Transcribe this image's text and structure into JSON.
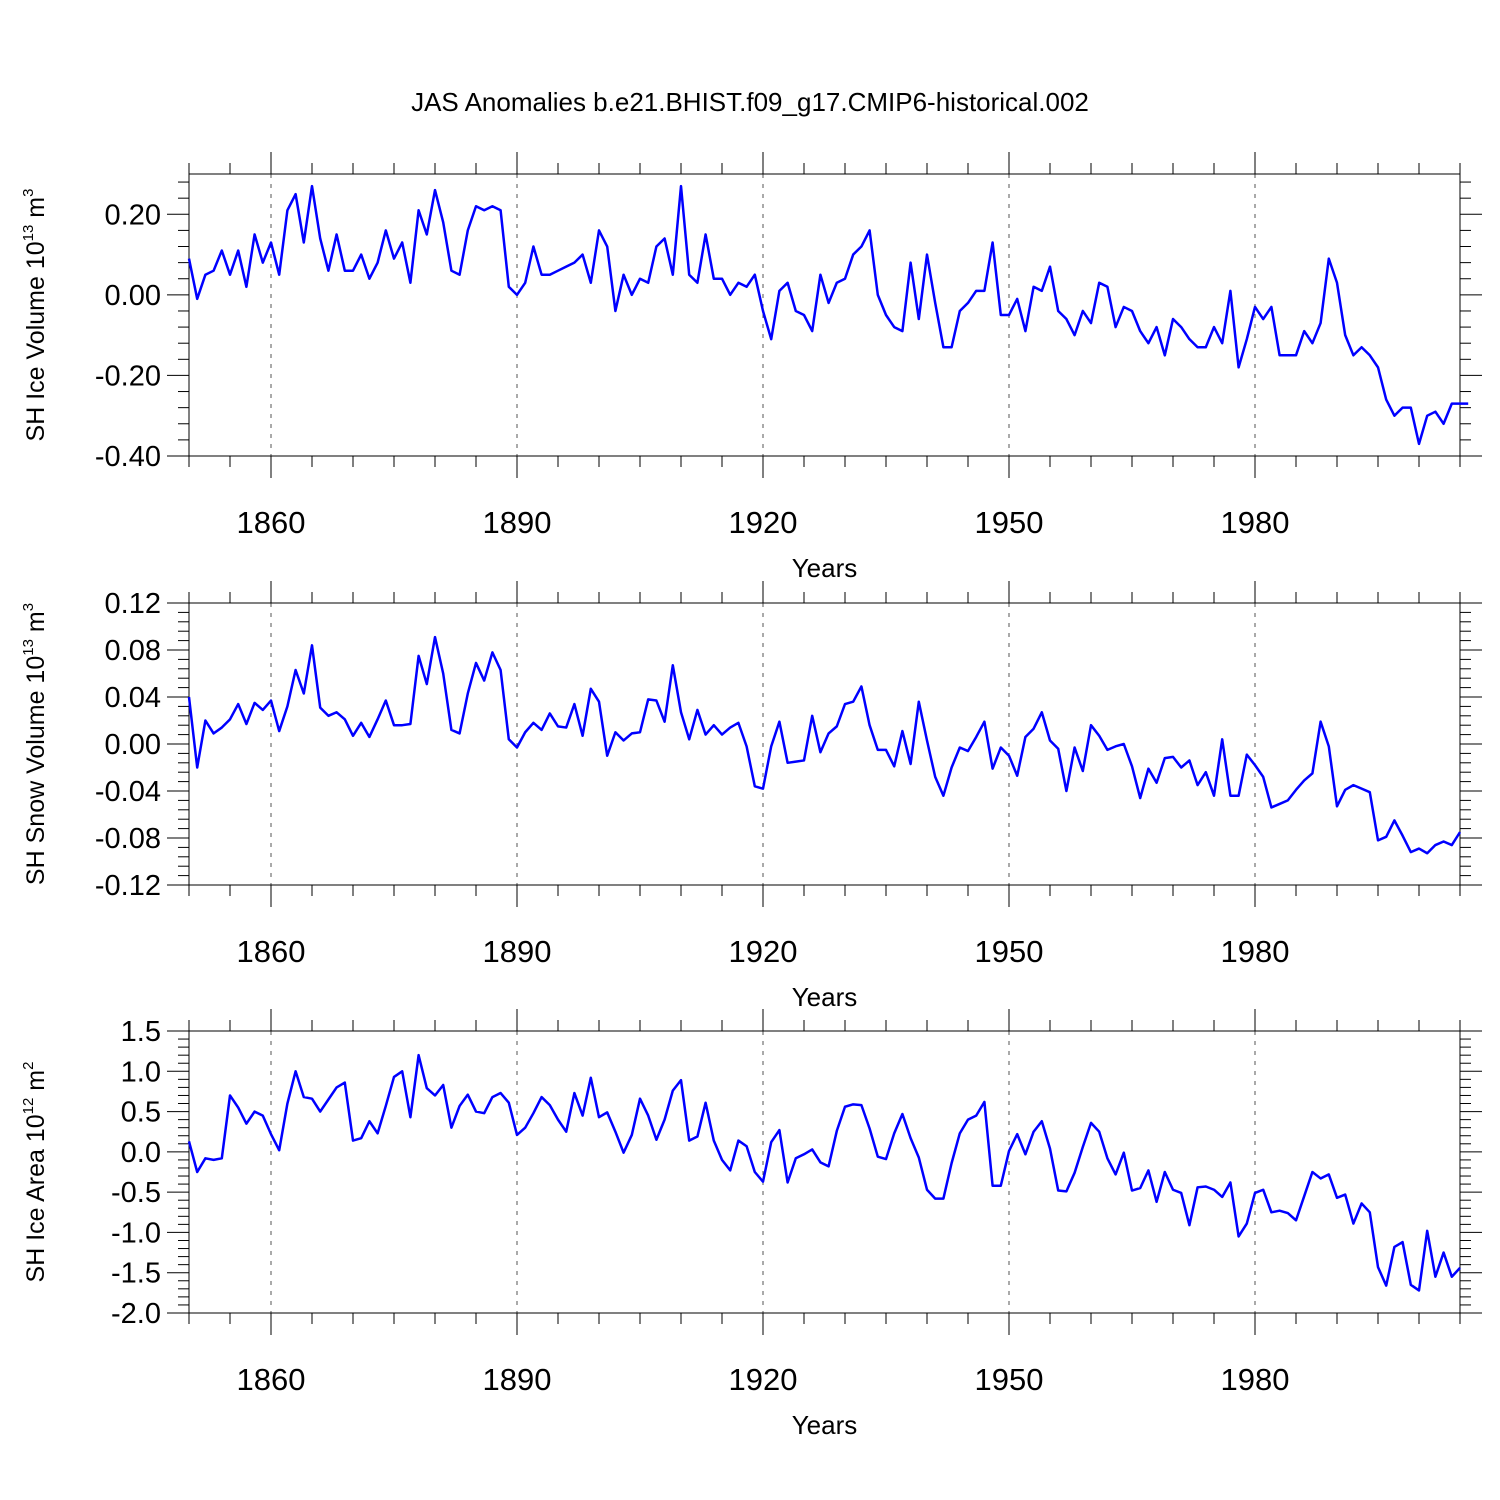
{
  "title": "JAS Anomalies b.e21.BHIST.f09_g17.CMIP6-historical.002",
  "colors": {
    "series": "#0000ff",
    "axis": "#000000",
    "grid": "#555555",
    "background": "#ffffff"
  },
  "chart_data": [
    {
      "type": "line",
      "name": "ice-volume",
      "ylabel": "SH Ice Volume",
      "yunit_base": "10",
      "yunit_exp": "13",
      "yunit_unit": "m",
      "yunit_unit_exp": "3",
      "xlabel": "Years",
      "xlim": [
        1850,
        2005
      ],
      "ylim": [
        -0.4,
        0.3
      ],
      "yticks": [
        -0.4,
        -0.2,
        0.0,
        0.2
      ],
      "ytick_labels": [
        "-0.40",
        "-0.20",
        "0.00",
        "0.20"
      ],
      "xticks": [
        1860,
        1890,
        1920,
        1950,
        1980
      ],
      "xtick_labels": [
        "1860",
        "1890",
        "1920",
        "1950",
        "1980"
      ],
      "grid": "vertical-dashed",
      "x_start": 1850,
      "values": [
        0.09,
        -0.01,
        0.05,
        0.06,
        0.11,
        0.05,
        0.11,
        0.02,
        0.15,
        0.08,
        0.13,
        0.05,
        0.21,
        0.25,
        0.13,
        0.27,
        0.14,
        0.06,
        0.15,
        0.06,
        0.06,
        0.1,
        0.04,
        0.08,
        0.16,
        0.09,
        0.13,
        0.03,
        0.21,
        0.15,
        0.26,
        0.18,
        0.06,
        0.05,
        0.16,
        0.22,
        0.21,
        0.22,
        0.21,
        0.02,
        0.0,
        0.03,
        0.12,
        0.05,
        0.05,
        0.06,
        0.07,
        0.08,
        0.1,
        0.03,
        0.16,
        0.12,
        -0.04,
        0.05,
        0.0,
        0.04,
        0.03,
        0.12,
        0.14,
        0.05,
        0.27,
        0.05,
        0.03,
        0.15,
        0.04,
        0.04,
        0.0,
        0.03,
        0.02,
        0.05,
        -0.04,
        -0.11,
        0.01,
        0.03,
        -0.04,
        -0.05,
        -0.09,
        0.05,
        -0.02,
        0.03,
        0.04,
        0.1,
        0.12,
        0.16,
        0.0,
        -0.05,
        -0.08,
        -0.09,
        0.08,
        -0.06,
        0.1,
        -0.02,
        -0.13,
        -0.13,
        -0.04,
        -0.02,
        0.01,
        0.01,
        0.13,
        -0.05,
        -0.05,
        -0.01,
        -0.09,
        0.02,
        0.01,
        0.07,
        -0.04,
        -0.06,
        -0.1,
        -0.04,
        -0.07,
        0.03,
        0.02,
        -0.08,
        -0.03,
        -0.04,
        -0.09,
        -0.12,
        -0.08,
        -0.15,
        -0.06,
        -0.08,
        -0.11,
        -0.13,
        -0.13,
        -0.08,
        -0.12,
        0.01,
        -0.18,
        -0.11,
        -0.03,
        -0.06,
        -0.03,
        -0.15,
        -0.15,
        -0.15,
        -0.09,
        -0.12,
        -0.07,
        0.09,
        0.03,
        -0.1,
        -0.15,
        -0.13,
        -0.15,
        -0.18,
        -0.26,
        -0.3,
        -0.28,
        -0.28,
        -0.37,
        -0.3,
        -0.29,
        -0.32,
        -0.27,
        -0.27,
        -0.27
      ]
    },
    {
      "type": "line",
      "name": "snow-volume",
      "ylabel": "SH Snow Volume",
      "yunit_base": "10",
      "yunit_exp": "13",
      "yunit_unit": "m",
      "yunit_unit_exp": "3",
      "xlabel": "Years",
      "xlim": [
        1850,
        2005
      ],
      "ylim": [
        -0.12,
        0.12
      ],
      "yticks": [
        -0.12,
        -0.08,
        -0.04,
        0.0,
        0.04,
        0.08,
        0.12
      ],
      "ytick_labels": [
        "-0.12",
        "-0.08",
        "-0.04",
        "0.00",
        "0.04",
        "0.08",
        "0.12"
      ],
      "xticks": [
        1860,
        1890,
        1920,
        1950,
        1980
      ],
      "xtick_labels": [
        "1860",
        "1890",
        "1920",
        "1950",
        "1980"
      ],
      "grid": "vertical-dashed",
      "x_start": 1850,
      "values": [
        0.04,
        -0.02,
        0.02,
        0.009,
        0.014,
        0.021,
        0.034,
        0.017,
        0.035,
        0.029,
        0.037,
        0.011,
        0.032,
        0.063,
        0.043,
        0.084,
        0.031,
        0.024,
        0.027,
        0.021,
        0.007,
        0.018,
        0.006,
        0.021,
        0.037,
        0.016,
        0.016,
        0.017,
        0.075,
        0.051,
        0.091,
        0.06,
        0.012,
        0.009,
        0.043,
        0.069,
        0.054,
        0.078,
        0.063,
        0.004,
        -0.003,
        0.01,
        0.018,
        0.012,
        0.026,
        0.015,
        0.014,
        0.034,
        0.007,
        0.047,
        0.036,
        -0.01,
        0.01,
        0.003,
        0.009,
        0.01,
        0.038,
        0.037,
        0.019,
        0.067,
        0.027,
        0.004,
        0.029,
        0.008,
        0.016,
        0.008,
        0.014,
        0.018,
        -0.002,
        -0.036,
        -0.038,
        -0.002,
        0.019,
        -0.016,
        -0.015,
        -0.014,
        0.024,
        -0.007,
        0.009,
        0.015,
        0.034,
        0.036,
        0.049,
        0.016,
        -0.005,
        -0.005,
        -0.019,
        0.011,
        -0.017,
        0.036,
        0.003,
        -0.028,
        -0.044,
        -0.02,
        -0.003,
        -0.006,
        0.006,
        0.019,
        -0.021,
        -0.003,
        -0.01,
        -0.027,
        0.006,
        0.013,
        0.027,
        0.003,
        -0.004,
        -0.04,
        -0.003,
        -0.023,
        0.016,
        0.007,
        -0.005,
        -0.002,
        -0.0,
        -0.019,
        -0.046,
        -0.021,
        -0.033,
        -0.012,
        -0.011,
        -0.02,
        -0.014,
        -0.035,
        -0.024,
        -0.044,
        0.004,
        -0.044,
        -0.044,
        -0.009,
        -0.018,
        -0.028,
        -0.054,
        -0.051,
        -0.048,
        -0.039,
        -0.031,
        -0.025,
        0.019,
        -0.002,
        -0.053,
        -0.039,
        -0.035,
        -0.038,
        -0.041,
        -0.082,
        -0.079,
        -0.065,
        -0.078,
        -0.092,
        -0.089,
        -0.093,
        -0.086,
        -0.083,
        -0.086,
        -0.075
      ]
    },
    {
      "type": "line",
      "name": "ice-area",
      "ylabel": "SH Ice Area",
      "yunit_base": "10",
      "yunit_exp": "12",
      "yunit_unit": "m",
      "yunit_unit_exp": "2",
      "xlabel": "Years",
      "xlim": [
        1850,
        2005
      ],
      "ylim": [
        -2.0,
        1.5
      ],
      "yticks": [
        -2.0,
        -1.5,
        -1.0,
        -0.5,
        0.0,
        0.5,
        1.0,
        1.5
      ],
      "ytick_labels": [
        "-2.0",
        "-1.5",
        "-1.0",
        "-0.5",
        "0.0",
        "0.5",
        "1.0",
        "1.5"
      ],
      "xticks": [
        1860,
        1890,
        1920,
        1950,
        1980
      ],
      "xtick_labels": [
        "1860",
        "1890",
        "1920",
        "1950",
        "1980"
      ],
      "grid": "vertical-dashed",
      "x_start": 1850,
      "values": [
        0.13,
        -0.25,
        -0.08,
        -0.1,
        -0.08,
        0.7,
        0.55,
        0.35,
        0.5,
        0.45,
        0.22,
        0.02,
        0.6,
        1.0,
        0.68,
        0.66,
        0.5,
        0.65,
        0.8,
        0.86,
        0.14,
        0.17,
        0.38,
        0.23,
        0.57,
        0.93,
        1.0,
        0.43,
        1.2,
        0.79,
        0.7,
        0.83,
        0.3,
        0.57,
        0.71,
        0.5,
        0.48,
        0.68,
        0.73,
        0.61,
        0.21,
        0.3,
        0.48,
        0.68,
        0.58,
        0.4,
        0.25,
        0.73,
        0.45,
        0.92,
        0.43,
        0.49,
        0.25,
        -0.01,
        0.21,
        0.66,
        0.45,
        0.15,
        0.4,
        0.76,
        0.89,
        0.14,
        0.19,
        0.61,
        0.14,
        -0.1,
        -0.23,
        0.14,
        0.07,
        -0.25,
        -0.37,
        0.12,
        0.27,
        -0.38,
        -0.08,
        -0.03,
        0.03,
        -0.13,
        -0.18,
        0.26,
        0.56,
        0.59,
        0.58,
        0.29,
        -0.06,
        -0.09,
        0.23,
        0.47,
        0.17,
        -0.07,
        -0.47,
        -0.58,
        -0.58,
        -0.14,
        0.23,
        0.4,
        0.45,
        0.62,
        -0.42,
        -0.42,
        0.01,
        0.22,
        -0.03,
        0.25,
        0.38,
        0.04,
        -0.48,
        -0.49,
        -0.26,
        0.06,
        0.36,
        0.25,
        -0.08,
        -0.28,
        -0.01,
        -0.48,
        -0.45,
        -0.23,
        -0.62,
        -0.25,
        -0.47,
        -0.51,
        -0.91,
        -0.44,
        -0.43,
        -0.47,
        -0.56,
        -0.38,
        -1.05,
        -0.89,
        -0.51,
        -0.47,
        -0.75,
        -0.73,
        -0.76,
        -0.85,
        -0.55,
        -0.25,
        -0.33,
        -0.28,
        -0.57,
        -0.53,
        -0.89,
        -0.64,
        -0.75,
        -1.43,
        -1.66,
        -1.18,
        -1.12,
        -1.65,
        -1.72,
        -0.98,
        -1.55,
        -1.25,
        -1.55,
        -1.44
      ]
    }
  ]
}
